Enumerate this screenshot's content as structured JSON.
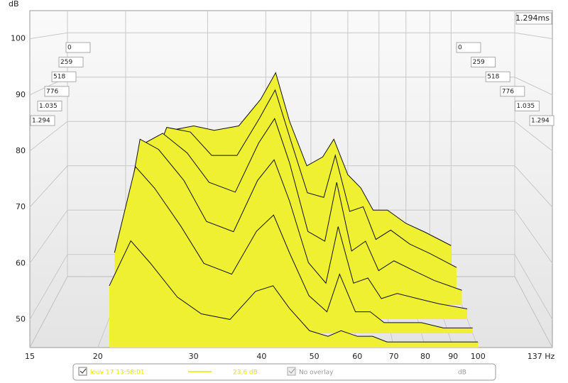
{
  "chart_data": {
    "type": "waterfall",
    "y_unit": "dB",
    "time_label": "1.294ms",
    "x": [
      21,
      23,
      25,
      28,
      31,
      35,
      39,
      42,
      45,
      49,
      53,
      56,
      60,
      64,
      68,
      73,
      80,
      88,
      100
    ],
    "series": [
      {
        "name": "0",
        "color": "#f0f032",
        "values": [
          50,
          50,
          78,
          79,
          78,
          79,
          85,
          91,
          80,
          70,
          72,
          76,
          68,
          65,
          60,
          60,
          57,
          55,
          52
        ]
      },
      {
        "name": "259",
        "color": "#f0f032",
        "values": [
          52,
          70,
          80,
          79,
          74,
          74,
          82,
          88,
          78,
          66,
          65,
          74,
          62,
          63,
          56,
          58,
          55,
          53,
          50
        ]
      },
      {
        "name": "518",
        "color": "#f0f032",
        "values": [
          55,
          78,
          80,
          76,
          70,
          68,
          78,
          83,
          74,
          60,
          58,
          70,
          56,
          58,
          52,
          54,
          52,
          50,
          48
        ]
      },
      {
        "name": "776",
        "color": "#f0f032",
        "values": [
          58,
          80,
          78,
          72,
          64,
          62,
          72,
          76,
          68,
          56,
          52,
          63,
          52,
          53,
          49,
          50,
          49,
          48,
          47
        ]
      },
      {
        "name": "1.035",
        "color": "#f0f032",
        "values": [
          60,
          76,
          72,
          65,
          58,
          56,
          64,
          67,
          60,
          52,
          49,
          56,
          49,
          49,
          47,
          47,
          47,
          46,
          46
        ]
      },
      {
        "name": "1.294",
        "color": "#f0f032",
        "values": [
          56,
          64,
          60,
          54,
          51,
          50,
          55,
          56,
          52,
          48,
          47,
          48,
          47,
          47,
          46,
          46,
          46,
          46,
          46
        ]
      }
    ],
    "xlim": [
      15,
      137
    ],
    "log_x": true,
    "xticks": [
      15,
      20,
      30,
      40,
      50,
      60,
      70,
      80,
      90,
      100,
      {
        "value": 137,
        "label": "137 Hz"
      }
    ],
    "ylim": [
      45,
      105
    ],
    "yticks": [
      50,
      60,
      70,
      80,
      90,
      100
    ],
    "grid": true,
    "legend": {
      "trace": "louv 17 13:58:01",
      "level": "23,6 dB",
      "overlay": "No overlay",
      "unit": "dB"
    }
  }
}
